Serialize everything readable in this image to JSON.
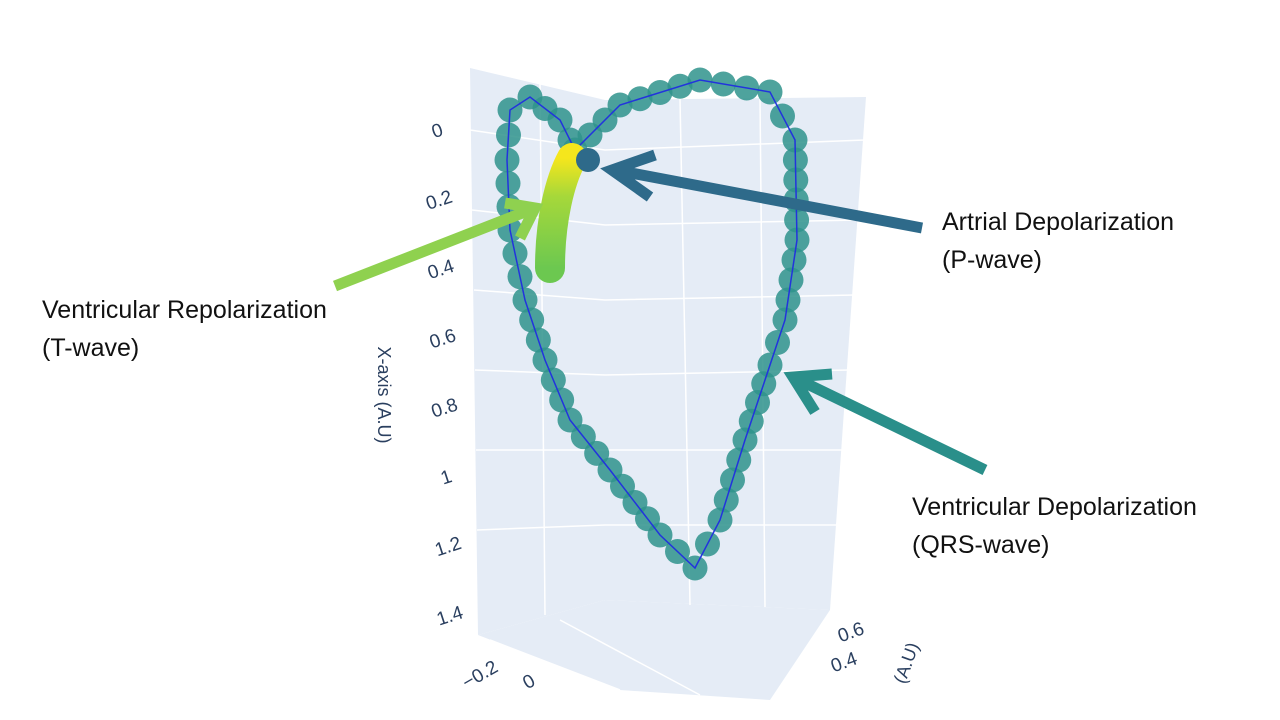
{
  "chart_data": {
    "type": "scatter3d",
    "x_axis_title": "X-axis (A.U)",
    "z_axis_title": "(A.U)",
    "xticks": [
      0,
      0.2,
      0.4,
      0.6,
      0.8,
      1,
      1.2,
      1.4
    ],
    "yticks": [
      {
        "value": -0.2,
        "label": "−0.2"
      },
      0
    ],
    "zticks": [
      0.6,
      0.4
    ],
    "annotations": [
      {
        "lines": [
          "Artrial Depolarization",
          "(P-wave)"
        ]
      },
      {
        "lines": [
          "Ventricular Repolarization",
          "(T-wave)"
        ]
      },
      {
        "lines": [
          "Ventricular Depolarization",
          "(QRS-wave)"
        ]
      }
    ]
  }
}
